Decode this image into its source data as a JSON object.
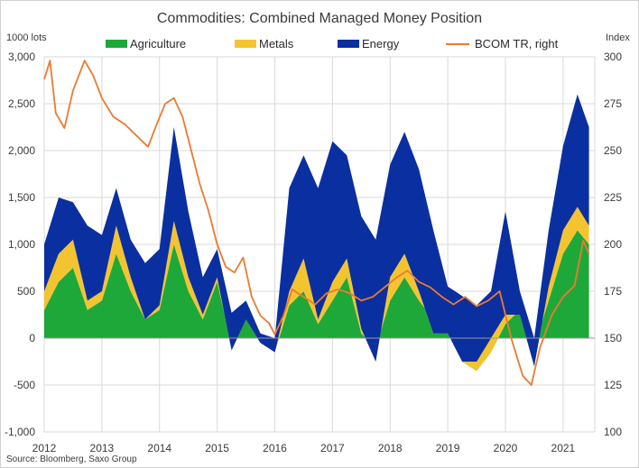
{
  "chart_data": {
    "type": "area",
    "title": "Commodities: Combined Managed Money Position",
    "left_unit": "1000 lots",
    "right_unit": "Index",
    "source": "Source: Bloomberg, Saxo Group",
    "x_ticks": [
      "2012",
      "2013",
      "2014",
      "2015",
      "2016",
      "2017",
      "2018",
      "2019",
      "2020",
      "2021"
    ],
    "y_ticks": [
      "3,000",
      "2,500",
      "2,000",
      "1,500",
      "1,000",
      "500",
      "0",
      "-500",
      "-1,000"
    ],
    "y2_ticks": [
      "300",
      "275",
      "250",
      "225",
      "200",
      "175",
      "150",
      "125",
      "100"
    ],
    "ylim": [
      -1000,
      3000
    ],
    "y2lim": [
      100,
      300
    ],
    "xlim": [
      2012.0,
      2021.55
    ],
    "grid": true,
    "legend_position": "top",
    "stacked": true,
    "colors": {
      "agriculture": "#1fa83a",
      "metals": "#f4c430",
      "energy": "#0a2fa0",
      "bcom": "#ec7a2f",
      "grid": "#d9d9d9",
      "axis": "#9a9a9a"
    },
    "series": [
      {
        "name": "Agriculture",
        "key": "agriculture",
        "x": [
          2012.0,
          2012.25,
          2012.5,
          2012.75,
          2013.0,
          2013.25,
          2013.5,
          2013.75,
          2014.0,
          2014.25,
          2014.5,
          2014.75,
          2015.0,
          2015.25,
          2015.5,
          2015.75,
          2016.0,
          2016.25,
          2016.5,
          2016.75,
          2017.0,
          2017.25,
          2017.5,
          2017.75,
          2018.0,
          2018.25,
          2018.5,
          2018.75,
          2019.0,
          2019.25,
          2019.5,
          2019.75,
          2020.0,
          2020.25,
          2020.5,
          2020.75,
          2021.0,
          2021.25,
          2021.45
        ],
        "values": [
          300,
          600,
          750,
          300,
          400,
          900,
          500,
          200,
          300,
          1000,
          500,
          200,
          600,
          -80,
          200,
          0,
          -150,
          350,
          500,
          150,
          400,
          650,
          50,
          -100,
          400,
          650,
          400,
          200,
          100,
          -250,
          -350,
          -150,
          150,
          300,
          -100,
          400,
          900,
          1150,
          1000
        ]
      },
      {
        "name": "Metals",
        "key": "metals",
        "x": [
          2012.0,
          2012.25,
          2012.5,
          2012.75,
          2013.0,
          2013.25,
          2013.5,
          2013.75,
          2014.0,
          2014.25,
          2014.5,
          2014.75,
          2015.0,
          2015.25,
          2015.5,
          2015.75,
          2016.0,
          2016.25,
          2016.5,
          2016.75,
          2017.0,
          2017.25,
          2017.5,
          2017.75,
          2018.0,
          2018.25,
          2018.5,
          2018.75,
          2019.0,
          2019.25,
          2019.5,
          2019.75,
          2020.0,
          2020.25,
          2020.5,
          2020.75,
          2021.0,
          2021.25,
          2021.45
        ],
        "values": [
          200,
          300,
          300,
          100,
          100,
          300,
          150,
          0,
          50,
          250,
          150,
          50,
          50,
          -50,
          0,
          -50,
          0,
          150,
          350,
          50,
          200,
          200,
          50,
          -150,
          250,
          250,
          100,
          -150,
          -50,
          0,
          100,
          150,
          100,
          -50,
          -200,
          150,
          250,
          250,
          200
        ]
      },
      {
        "name": "Energy",
        "key": "energy",
        "x": [
          2012.0,
          2012.25,
          2012.5,
          2012.75,
          2013.0,
          2013.25,
          2013.5,
          2013.75,
          2014.0,
          2014.25,
          2014.5,
          2014.75,
          2015.0,
          2015.25,
          2015.5,
          2015.75,
          2016.0,
          2016.25,
          2016.5,
          2016.75,
          2017.0,
          2017.25,
          2017.5,
          2017.75,
          2018.0,
          2018.25,
          2018.5,
          2018.75,
          2019.0,
          2019.25,
          2019.5,
          2019.75,
          2020.0,
          2020.25,
          2020.5,
          2020.75,
          2021.0,
          2021.25,
          2021.45
        ],
        "values": [
          500,
          600,
          400,
          800,
          600,
          400,
          400,
          600,
          600,
          1000,
          700,
          400,
          300,
          400,
          200,
          100,
          150,
          1100,
          1100,
          1400,
          1500,
          1100,
          1200,
          1300,
          1200,
          1300,
          1300,
          1100,
          500,
          700,
          600,
          500,
          1100,
          250,
          300,
          600,
          900,
          1200,
          1050
        ]
      },
      {
        "name": "BCOM TR, right",
        "key": "bcom",
        "x": [
          2012.0,
          2012.1,
          2012.2,
          2012.35,
          2012.5,
          2012.7,
          2012.85,
          2013.0,
          2013.2,
          2013.4,
          2013.6,
          2013.8,
          2013.95,
          2014.1,
          2014.25,
          2014.4,
          2014.55,
          2014.7,
          2014.85,
          2015.0,
          2015.15,
          2015.3,
          2015.45,
          2015.6,
          2015.75,
          2015.9,
          2016.0,
          2016.15,
          2016.3,
          2016.5,
          2016.7,
          2016.9,
          2017.1,
          2017.3,
          2017.5,
          2017.7,
          2017.9,
          2018.1,
          2018.3,
          2018.5,
          2018.7,
          2018.9,
          2019.1,
          2019.3,
          2019.5,
          2019.7,
          2019.9,
          2020.1,
          2020.3,
          2020.45,
          2020.6,
          2020.8,
          2021.0,
          2021.2,
          2021.35,
          2021.45
        ],
        "values": [
          288,
          298,
          270,
          262,
          282,
          298,
          290,
          278,
          268,
          264,
          258,
          252,
          264,
          275,
          278,
          268,
          250,
          232,
          218,
          200,
          188,
          185,
          193,
          172,
          162,
          158,
          152,
          162,
          176,
          172,
          168,
          174,
          176,
          174,
          170,
          172,
          177,
          182,
          186,
          180,
          177,
          172,
          168,
          172,
          167,
          170,
          175,
          150,
          130,
          125,
          145,
          162,
          172,
          178,
          202,
          195
        ]
      }
    ]
  }
}
